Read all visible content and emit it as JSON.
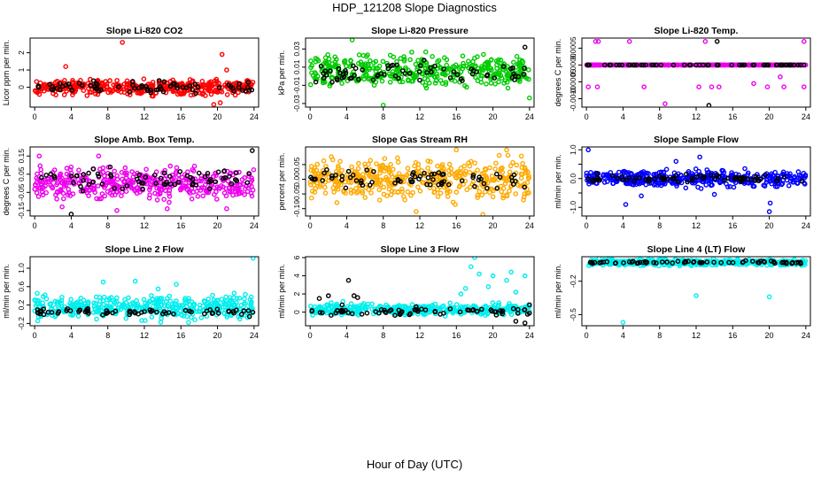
{
  "page": {
    "title": "HDP_121208  Slope Diagnostics",
    "xlabel": "Hour of Day (UTC)"
  },
  "chart_data": [
    {
      "type": "scatter",
      "title": "Slope Li-820 CO2",
      "ylabel": "Licor ppm per min.",
      "xticks": [
        0,
        4,
        8,
        12,
        16,
        20,
        24
      ],
      "xlim": [
        -0.5,
        24.5
      ],
      "yticks": [
        0,
        1,
        2
      ],
      "ytick_labels": [
        "0",
        "1",
        "2"
      ],
      "ylim": [
        -1.15,
        2.85
      ],
      "color": "#ff0000",
      "series": [
        {
          "x": [
            0,
            24
          ],
          "y": [
            -0.6,
            0.6
          ],
          "color": "#ff0000"
        },
        {
          "x": [
            0,
            24
          ],
          "y": [
            -0.5,
            0.5
          ],
          "color": "#000000"
        }
      ],
      "points": [
        {
          "x": 9.6,
          "y": 2.6,
          "color": "#ff0000"
        },
        {
          "x": 20.5,
          "y": 1.9,
          "color": "#ff0000"
        },
        {
          "x": 3.4,
          "y": 1.2,
          "color": "#ff0000"
        },
        {
          "x": 21.0,
          "y": 1.0,
          "color": "#ff0000"
        },
        {
          "x": 20.3,
          "y": -0.9,
          "color": "#ff0000"
        },
        {
          "x": 19.6,
          "y": -1.0,
          "color": "#ff0000"
        }
      ]
    },
    {
      "type": "scatter",
      "title": "Slope Li-820 Pressure",
      "ylabel": "kPa per min.",
      "xticks": [
        0,
        4,
        8,
        12,
        16,
        20,
        24
      ],
      "xlim": [
        -0.5,
        24.5
      ],
      "yticks": [
        -0.03,
        -0.01,
        0.01,
        0.03
      ],
      "ytick_labels": [
        "-0.03",
        "-0.01",
        "0.01",
        "0.03"
      ],
      "ylim": [
        -0.034,
        0.042
      ],
      "color": "#00cc00",
      "series": [
        {
          "x": [
            0,
            24
          ],
          "y": [
            -0.02,
            0.03
          ],
          "color": "#00cc00"
        },
        {
          "x": [
            0,
            24
          ],
          "y": [
            -0.012,
            0.02
          ],
          "color": "#000000"
        }
      ],
      "points": [
        {
          "x": 4.6,
          "y": 0.04,
          "color": "#00cc00"
        },
        {
          "x": 8.0,
          "y": -0.032,
          "color": "#00cc00"
        },
        {
          "x": 24.0,
          "y": -0.024,
          "color": "#00cc00"
        },
        {
          "x": 23.5,
          "y": 0.032,
          "color": "#000000"
        }
      ]
    },
    {
      "type": "scatter",
      "title": "Slope Li-820 Temp.",
      "ylabel": "degrees C per min.",
      "xticks": [
        0,
        4,
        8,
        12,
        16,
        20,
        24
      ],
      "xlim": [
        -0.5,
        24.5
      ],
      "yticks": [
        -0.001,
        -0.0005,
        0.0,
        0.0005
      ],
      "ytick_labels": [
        "-0.0010",
        "-0.0005",
        "0.0000",
        "0.0005"
      ],
      "ylim": [
        -0.00125,
        0.0008
      ],
      "color": "#ee00ee",
      "series": [
        {
          "x": [
            0,
            24
          ],
          "y": [
            0,
            0
          ],
          "color": "#ee00ee"
        },
        {
          "x": [
            0,
            24
          ],
          "y": [
            0,
            0
          ],
          "color": "#000000"
        }
      ],
      "points": [
        {
          "x": 1.0,
          "y": 0.0007,
          "color": "#ee00ee"
        },
        {
          "x": 1.3,
          "y": 0.0007,
          "color": "#ee00ee"
        },
        {
          "x": 4.7,
          "y": 0.0007,
          "color": "#ee00ee"
        },
        {
          "x": 13.0,
          "y": 0.0007,
          "color": "#ee00ee"
        },
        {
          "x": 14.3,
          "y": 0.0007,
          "color": "#000000"
        },
        {
          "x": 23.8,
          "y": 0.0007,
          "color": "#ee00ee"
        },
        {
          "x": 0.2,
          "y": -0.00065,
          "color": "#ee00ee"
        },
        {
          "x": 1.2,
          "y": -0.00065,
          "color": "#ee00ee"
        },
        {
          "x": 6.3,
          "y": -0.00065,
          "color": "#ee00ee"
        },
        {
          "x": 12.3,
          "y": -0.00065,
          "color": "#ee00ee"
        },
        {
          "x": 13.7,
          "y": -0.00065,
          "color": "#ee00ee"
        },
        {
          "x": 14.5,
          "y": -0.00065,
          "color": "#ee00ee"
        },
        {
          "x": 19.8,
          "y": -0.00065,
          "color": "#ee00ee"
        },
        {
          "x": 21.6,
          "y": -0.00065,
          "color": "#ee00ee"
        },
        {
          "x": 23.8,
          "y": -0.00065,
          "color": "#ee00ee"
        },
        {
          "x": 13.4,
          "y": -0.0012,
          "color": "#000000"
        },
        {
          "x": 8.6,
          "y": -0.00115,
          "color": "#ee00ee"
        },
        {
          "x": 18.3,
          "y": -0.00055,
          "color": "#ee00ee"
        },
        {
          "x": 21.2,
          "y": -0.00035,
          "color": "#ee00ee"
        }
      ]
    },
    {
      "type": "scatter",
      "title": "Slope Amb. Box Temp.",
      "ylabel": "degrees C per min.",
      "xticks": [
        0,
        4,
        8,
        12,
        16,
        20,
        24
      ],
      "xlim": [
        -0.5,
        24.5
      ],
      "yticks": [
        -0.15,
        -0.05,
        0.05,
        0.15
      ],
      "ytick_labels": [
        "-0.15",
        "-0.05",
        "0.05",
        "0.15"
      ],
      "ylim": [
        -0.18,
        0.2
      ],
      "color": "#ee00ee",
      "series": [
        {
          "x": [
            0,
            24
          ],
          "y": [
            -0.12,
            0.12
          ],
          "color": "#ee00ee"
        },
        {
          "x": [
            0,
            24
          ],
          "y": [
            -0.06,
            0.1
          ],
          "color": "#000000"
        }
      ],
      "points": [
        {
          "x": 0.5,
          "y": 0.15,
          "color": "#ee00ee"
        },
        {
          "x": 4.0,
          "y": -0.17,
          "color": "#000000"
        },
        {
          "x": 23.8,
          "y": 0.18,
          "color": "#000000"
        },
        {
          "x": 7.0,
          "y": 0.15,
          "color": "#ee00ee"
        },
        {
          "x": 14.5,
          "y": -0.14,
          "color": "#ee00ee"
        },
        {
          "x": 21.0,
          "y": -0.14,
          "color": "#ee00ee"
        },
        {
          "x": 3.0,
          "y": -0.13,
          "color": "#ee00ee"
        },
        {
          "x": 9.0,
          "y": -0.15,
          "color": "#ee00ee"
        }
      ]
    },
    {
      "type": "scatter",
      "title": "Slope Gas Stream RH",
      "ylabel": "percent per min.",
      "xticks": [
        0,
        4,
        8,
        12,
        16,
        20,
        24
      ],
      "xlim": [
        -0.5,
        24.5
      ],
      "yticks": [
        -0.1,
        -0.05,
        0.0,
        0.05
      ],
      "ytick_labels": [
        "-0.10",
        "-0.05",
        "0.00",
        "0.05"
      ],
      "ylim": [
        -0.125,
        0.11
      ],
      "color": "#ffaa00",
      "series": [
        {
          "x": [
            0,
            24
          ],
          "y": [
            -0.1,
            0.1
          ],
          "color": "#ffaa00"
        },
        {
          "x": [
            0,
            24
          ],
          "y": [
            -0.05,
            0.05
          ],
          "color": "#000000"
        }
      ],
      "points": [
        {
          "x": 18.9,
          "y": -0.12,
          "color": "#ffaa00"
        },
        {
          "x": 21.5,
          "y": 0.1,
          "color": "#ffaa00"
        },
        {
          "x": 11.6,
          "y": -0.11,
          "color": "#ffaa00"
        },
        {
          "x": 16.0,
          "y": 0.1,
          "color": "#ffaa00"
        }
      ]
    },
    {
      "type": "scatter",
      "title": "Slope Sample Flow",
      "ylabel": "ml/min per min.",
      "xticks": [
        0,
        4,
        8,
        12,
        16,
        20,
        24
      ],
      "xlim": [
        -0.5,
        24.5
      ],
      "yticks": [
        -1.0,
        -0.5,
        0.0,
        0.5,
        1.0
      ],
      "ytick_labels": [
        "-1.0",
        "",
        "0.0",
        "",
        "1.0"
      ],
      "ylim": [
        -1.3,
        1.1
      ],
      "color": "#0000ff",
      "series": [
        {
          "x": [
            0,
            24
          ],
          "y": [
            -0.4,
            0.4
          ],
          "color": "#0000ff"
        },
        {
          "x": [
            0,
            24
          ],
          "y": [
            -0.2,
            0.2
          ],
          "color": "#000000"
        }
      ],
      "points": [
        {
          "x": 0.2,
          "y": 1.0,
          "color": "#0000ff"
        },
        {
          "x": 12.4,
          "y": 0.75,
          "color": "#0000ff"
        },
        {
          "x": 20.0,
          "y": -1.15,
          "color": "#0000ff"
        },
        {
          "x": 20.1,
          "y": -0.85,
          "color": "#0000ff"
        },
        {
          "x": 4.3,
          "y": -0.9,
          "color": "#0000ff"
        },
        {
          "x": 6.0,
          "y": -0.6,
          "color": "#0000ff"
        },
        {
          "x": 14.0,
          "y": -0.55,
          "color": "#0000ff"
        },
        {
          "x": 9.8,
          "y": 0.6,
          "color": "#0000ff"
        }
      ]
    },
    {
      "type": "scatter",
      "title": "Slope Line 2 Flow",
      "ylabel": "ml/min per min.",
      "xticks": [
        0,
        4,
        8,
        12,
        16,
        20,
        24
      ],
      "xlim": [
        -0.5,
        24.5
      ],
      "yticks": [
        -0.2,
        0.2,
        0.6,
        1.0
      ],
      "ytick_labels": [
        "-0.2",
        "0.2",
        "0.6",
        "1.0"
      ],
      "ylim": [
        -0.25,
        1.25
      ],
      "color": "#00eeee",
      "series": [
        {
          "x": [
            0,
            24
          ],
          "y": [
            -0.2,
            0.5
          ],
          "color": "#00eeee"
        },
        {
          "x": [
            0,
            24
          ],
          "y": [
            -0.05,
            0.15
          ],
          "color": "#000000"
        }
      ],
      "points": [
        {
          "x": 23.9,
          "y": 1.22,
          "color": "#00eeee"
        },
        {
          "x": 7.5,
          "y": 0.7,
          "color": "#00eeee"
        },
        {
          "x": 11.0,
          "y": 0.72,
          "color": "#00eeee"
        },
        {
          "x": 15.5,
          "y": 0.65,
          "color": "#00eeee"
        },
        {
          "x": 13.5,
          "y": 0.55,
          "color": "#00eeee"
        },
        {
          "x": 23.5,
          "y": -0.05,
          "color": "#000000"
        }
      ]
    },
    {
      "type": "scatter",
      "title": "Slope Line 3 Flow",
      "ylabel": "ml/min per min.",
      "xticks": [
        0,
        4,
        8,
        12,
        16,
        20,
        24
      ],
      "xlim": [
        -0.5,
        24.5
      ],
      "yticks": [
        0,
        2,
        4,
        6
      ],
      "ytick_labels": [
        "0",
        "2",
        "4",
        "6"
      ],
      "ylim": [
        -1.5,
        6.1
      ],
      "color": "#00eeee",
      "series": [
        {
          "x": [
            0,
            24
          ],
          "y": [
            -0.6,
            1.2
          ],
          "color": "#00eeee"
        },
        {
          "x": [
            0,
            24
          ],
          "y": [
            -0.5,
            0.6
          ],
          "color": "#000000"
        }
      ],
      "points": [
        {
          "x": 18.0,
          "y": 6.0,
          "color": "#00eeee"
        },
        {
          "x": 17.6,
          "y": 5.0,
          "color": "#00eeee"
        },
        {
          "x": 18.5,
          "y": 4.2,
          "color": "#00eeee"
        },
        {
          "x": 20.0,
          "y": 4.0,
          "color": "#00eeee"
        },
        {
          "x": 21.5,
          "y": 3.5,
          "color": "#00eeee"
        },
        {
          "x": 22.0,
          "y": 4.4,
          "color": "#00eeee"
        },
        {
          "x": 23.5,
          "y": 4.0,
          "color": "#00eeee"
        },
        {
          "x": 16.5,
          "y": 2.0,
          "color": "#00eeee"
        },
        {
          "x": 17.0,
          "y": 2.6,
          "color": "#00eeee"
        },
        {
          "x": 19.5,
          "y": 2.8,
          "color": "#00eeee"
        },
        {
          "x": 22.5,
          "y": 2.2,
          "color": "#00eeee"
        },
        {
          "x": 4.2,
          "y": 3.5,
          "color": "#000000"
        },
        {
          "x": 4.8,
          "y": 1.8,
          "color": "#000000"
        },
        {
          "x": 5.2,
          "y": 1.6,
          "color": "#000000"
        },
        {
          "x": 1.0,
          "y": 1.5,
          "color": "#000000"
        },
        {
          "x": 2.0,
          "y": 1.8,
          "color": "#000000"
        },
        {
          "x": 3.5,
          "y": 0.8,
          "color": "#000000"
        },
        {
          "x": 23.5,
          "y": -1.2,
          "color": "#000000"
        },
        {
          "x": 22.5,
          "y": -1.0,
          "color": "#000000"
        },
        {
          "x": 24.0,
          "y": 0.8,
          "color": "#000000"
        }
      ]
    },
    {
      "type": "scatter",
      "title": "Slope Line 4 (LT) Flow",
      "ylabel": "ml/min per min.",
      "xticks": [
        0,
        4,
        8,
        12,
        16,
        20,
        24
      ],
      "xlim": [
        -0.5,
        24.5
      ],
      "yticks": [
        -0.5,
        -0.2
      ],
      "ytick_labels": [
        "-0.5",
        "-0.2"
      ],
      "ylim": [
        -0.6,
        0.02
      ],
      "color": "#00eeee",
      "series": [
        {
          "x": [
            0,
            24
          ],
          "y": [
            -0.07,
            0.01
          ],
          "color": "#00eeee"
        },
        {
          "x": [
            0,
            24
          ],
          "y": [
            -0.05,
            -0.01
          ],
          "color": "#000000"
        }
      ],
      "points": [
        {
          "x": 4.0,
          "y": -0.57,
          "color": "#00eeee"
        },
        {
          "x": 12.0,
          "y": -0.33,
          "color": "#00eeee"
        },
        {
          "x": 20.0,
          "y": -0.34,
          "color": "#00eeee"
        }
      ]
    }
  ]
}
